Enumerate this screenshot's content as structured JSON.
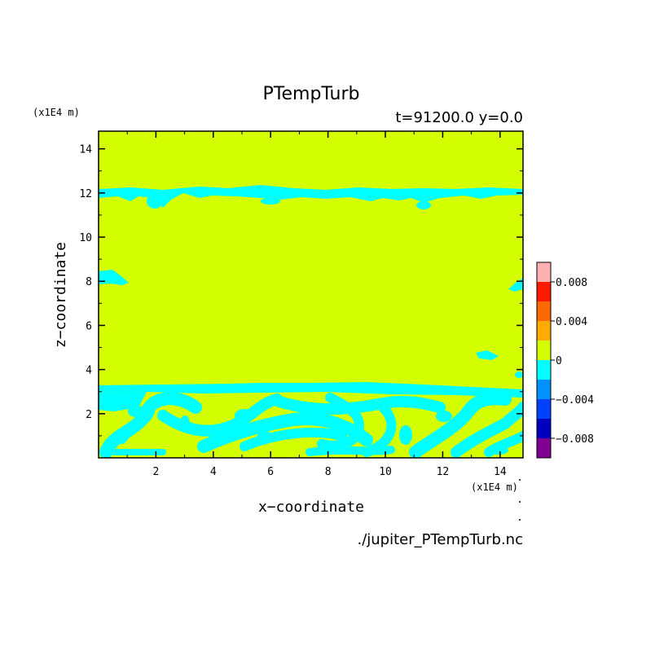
{
  "chart_data": {
    "type": "heatmap",
    "title": "PTempTurb",
    "subtitle": "t=91200.0 y=0.0",
    "xlabel": "x−coordinate",
    "ylabel": "z−coordinate",
    "x_unit": "(x1E4 m)",
    "y_unit": "(x1E4 m)",
    "xlim": [
      0,
      14.8
    ],
    "ylim": [
      0,
      14.8
    ],
    "xticks": [
      "2",
      "4",
      "6",
      "8",
      "10",
      "12",
      "14"
    ],
    "yticks": [
      "2",
      "4",
      "6",
      "8",
      "10",
      "12",
      "14"
    ],
    "source_file": "./jupiter_PTempTurb.nc",
    "background_color": "#d4ff00",
    "colorbar": {
      "ticks": [
        "0.008",
        "0.004",
        "0",
        "−0.004",
        "−0.008"
      ],
      "levels": [
        {
          "range": [
            0.008,
            0.01
          ],
          "color": "#ffb0b0"
        },
        {
          "range": [
            0.006,
            0.008
          ],
          "color": "#ff1a00"
        },
        {
          "range": [
            0.004,
            0.006
          ],
          "color": "#ff6a00"
        },
        {
          "range": [
            0.002,
            0.004
          ],
          "color": "#ffaa00"
        },
        {
          "range": [
            0.0,
            0.002
          ],
          "color": "#d4ff00"
        },
        {
          "range": [
            -0.002,
            0.0
          ],
          "color": "#00ffff"
        },
        {
          "range": [
            -0.004,
            -0.002
          ],
          "color": "#0090ff"
        },
        {
          "range": [
            -0.006,
            -0.004
          ],
          "color": "#0040ff"
        },
        {
          "range": [
            -0.008,
            -0.006
          ],
          "color": "#0000c0"
        },
        {
          "range": [
            -0.01,
            -0.008
          ],
          "color": "#800090"
        }
      ]
    },
    "features": [
      {
        "name": "upper-turbulent-layer",
        "z_range": [
          11.6,
          12.4
        ],
        "value_sign": "negative",
        "color": "#00ffff"
      },
      {
        "name": "left-edge-blob",
        "x_range": [
          0,
          1.0
        ],
        "z_range": [
          7.9,
          8.6
        ],
        "value_sign": "negative",
        "color": "#00ffff"
      },
      {
        "name": "right-edge-blob",
        "x_range": [
          14.3,
          14.8
        ],
        "z_range": [
          7.8,
          8.3
        ],
        "value_sign": "negative",
        "color": "#00ffff"
      },
      {
        "name": "small-blob",
        "x_range": [
          13.1,
          14.0
        ],
        "z_range": [
          4.6,
          5.0
        ],
        "value_sign": "negative",
        "color": "#00ffff"
      },
      {
        "name": "lower-turbulent-layer",
        "z_range": [
          0,
          3.4
        ],
        "value_sign": "negative",
        "color": "#00ffff"
      }
    ]
  }
}
